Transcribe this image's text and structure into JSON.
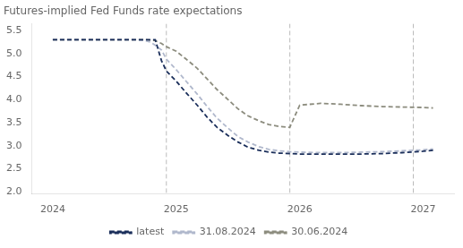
{
  "chart_data": {
    "type": "line",
    "title": "Futures-implied Fed Funds rate expectations",
    "xlim": [
      2023.83,
      2027.25
    ],
    "ylim": [
      1.95,
      5.65
    ],
    "xticks": [
      2024,
      2025,
      2026,
      2027
    ],
    "yticks": [
      {
        "value": 2.0,
        "label": "2.0"
      },
      2.5,
      {
        "value": 3.0,
        "label": "3.0"
      },
      3.5,
      {
        "value": 4.0,
        "label": "4.0"
      },
      4.5,
      {
        "value": 5.0,
        "label": "5.0"
      },
      5.5
    ],
    "grid": false,
    "legend": "bottom",
    "vlines": {
      "values": [
        2024.92,
        2025.92,
        2026.92
      ],
      "color": "#aaaaaa",
      "line_style": "dashed"
    },
    "series": [
      {
        "name": "latest",
        "color": "#1a2e5a",
        "line_style": "dashed",
        "x": [
          2024.0,
          2024.08,
          2024.17,
          2024.25,
          2024.33,
          2024.42,
          2024.5,
          2024.58,
          2024.67,
          2024.75,
          2024.79,
          2024.83,
          2024.88,
          2024.92,
          2025.0,
          2025.08,
          2025.17,
          2025.25,
          2025.33,
          2025.42,
          2025.5,
          2025.58,
          2025.67,
          2025.75,
          2025.83,
          2025.92,
          2026.0,
          2026.17,
          2026.33,
          2026.5,
          2026.67,
          2026.83,
          2027.0,
          2027.08
        ],
        "values": [
          5.3,
          5.3,
          5.3,
          5.3,
          5.3,
          5.3,
          5.3,
          5.3,
          5.3,
          5.3,
          5.3,
          5.3,
          4.85,
          4.62,
          4.4,
          4.15,
          3.88,
          3.62,
          3.4,
          3.22,
          3.08,
          2.97,
          2.9,
          2.86,
          2.84,
          2.83,
          2.82,
          2.82,
          2.82,
          2.82,
          2.83,
          2.85,
          2.88,
          2.9
        ]
      },
      {
        "name": "31.08.2024",
        "color": "#b0b8cc",
        "line_style": "dashed",
        "x": [
          2024.0,
          2024.08,
          2024.17,
          2024.25,
          2024.33,
          2024.42,
          2024.5,
          2024.58,
          2024.67,
          2024.75,
          2024.79,
          2024.83,
          2024.88,
          2024.92,
          2025.0,
          2025.08,
          2025.17,
          2025.25,
          2025.33,
          2025.42,
          2025.5,
          2025.58,
          2025.67,
          2025.75,
          2025.83,
          2025.92,
          2026.0,
          2026.17,
          2026.33,
          2026.5,
          2026.67,
          2026.83,
          2027.0,
          2027.08
        ],
        "values": [
          5.3,
          5.3,
          5.3,
          5.3,
          5.3,
          5.3,
          5.3,
          5.3,
          5.3,
          5.28,
          5.25,
          5.18,
          5.08,
          4.88,
          4.65,
          4.4,
          4.12,
          3.85,
          3.6,
          3.38,
          3.2,
          3.08,
          2.98,
          2.92,
          2.89,
          2.87,
          2.86,
          2.85,
          2.85,
          2.86,
          2.87,
          2.89,
          2.91,
          2.93
        ]
      },
      {
        "name": "30.06.2024",
        "color": "#8c8c7e",
        "line_style": "dashed",
        "x": [
          2024.0,
          2024.08,
          2024.17,
          2024.25,
          2024.33,
          2024.42,
          2024.5,
          2024.58,
          2024.67,
          2024.75,
          2024.83,
          2024.88,
          2024.92,
          2025.0,
          2025.08,
          2025.17,
          2025.25,
          2025.33,
          2025.42,
          2025.5,
          2025.58,
          2025.67,
          2025.75,
          2025.83,
          2025.92,
          2026.0,
          2026.17,
          2026.33,
          2026.5,
          2026.67,
          2026.83,
          2027.0,
          2027.08
        ],
        "values": [
          5.3,
          5.3,
          5.3,
          5.3,
          5.3,
          5.3,
          5.3,
          5.3,
          5.3,
          5.3,
          5.28,
          5.22,
          5.15,
          5.05,
          4.88,
          4.68,
          4.45,
          4.22,
          4.0,
          3.8,
          3.65,
          3.54,
          3.46,
          3.42,
          3.4,
          3.88,
          3.92,
          3.9,
          3.87,
          3.85,
          3.84,
          3.83,
          3.82
        ]
      }
    ]
  }
}
